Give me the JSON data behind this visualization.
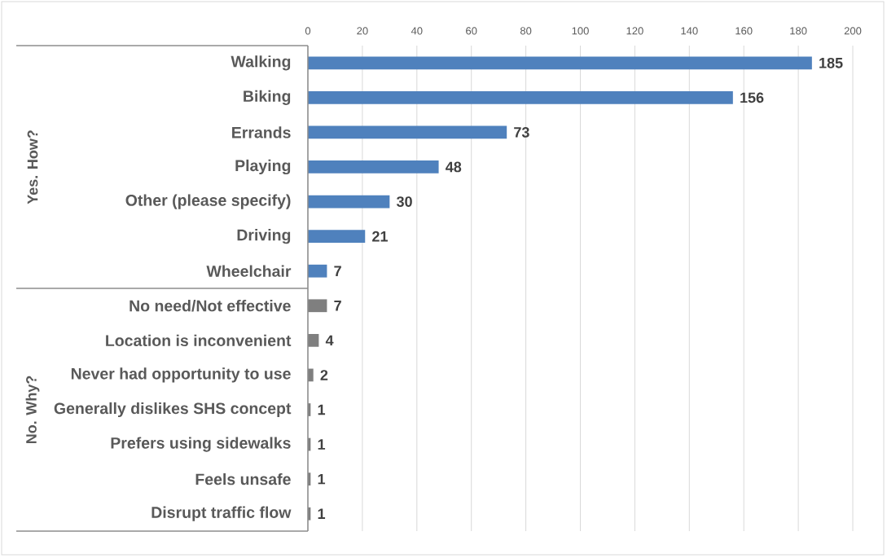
{
  "chart_data": {
    "type": "bar",
    "orientation": "horizontal",
    "categories": [
      "Walking",
      "Biking",
      "Errands",
      "Playing",
      "Other (please specify)",
      "Driving",
      "Wheelchair",
      "No need/Not effective",
      "Location is inconvenient",
      "Never had opportunity to use",
      "Generally dislikes SHS concept",
      "Prefers using sidewalks",
      "Feels unsafe",
      "Disrupt traffic flow"
    ],
    "values": [
      185,
      156,
      73,
      48,
      30,
      21,
      7,
      7,
      4,
      2,
      1,
      1,
      1,
      1
    ],
    "colors": [
      "#4f81bd",
      "#4f81bd",
      "#4f81bd",
      "#4f81bd",
      "#4f81bd",
      "#4f81bd",
      "#4f81bd",
      "#7f7f7f",
      "#7f7f7f",
      "#7f7f7f",
      "#7f7f7f",
      "#7f7f7f",
      "#7f7f7f",
      "#7f7f7f"
    ],
    "xlim": [
      0,
      200
    ],
    "xticks": [
      0,
      20,
      40,
      60,
      80,
      100,
      120,
      140,
      160,
      180,
      200
    ],
    "grid": "x",
    "data_labels": true,
    "annotations": [
      "Yes. How?",
      "No. Why?"
    ]
  }
}
